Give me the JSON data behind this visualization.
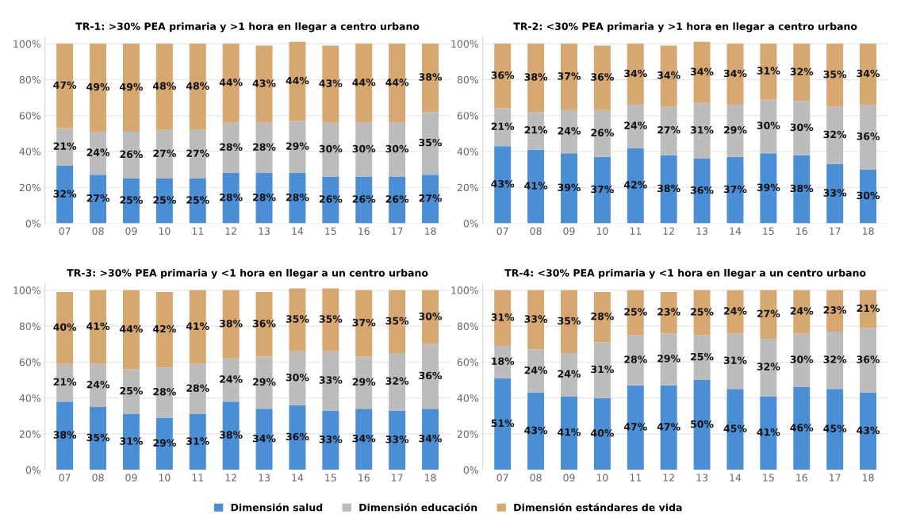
{
  "chart_data": [
    {
      "type": "bar",
      "stacked": true,
      "grid": "y",
      "legend": "bottom",
      "title": "TR-1: >30% PEA primaria y >1 hora en llegar a centro urbano",
      "categories": [
        "07",
        "08",
        "09",
        "10",
        "11",
        "12",
        "13",
        "14",
        "15",
        "16",
        "17",
        "18"
      ],
      "ylim": [
        0,
        104
      ],
      "yticks": [
        {
          "value": 0,
          "label": "0%"
        },
        {
          "value": 20,
          "label": "20%"
        },
        {
          "value": 40,
          "label": "40%"
        },
        {
          "value": 60,
          "label": "60%"
        },
        {
          "value": 80,
          "label": "80%"
        },
        {
          "value": 100,
          "label": "100%"
        }
      ],
      "series": [
        {
          "name": "Dimensión salud",
          "color": "#4a8fd6",
          "values": [
            32,
            27,
            25,
            25,
            25,
            28,
            28,
            28,
            26,
            26,
            26,
            27
          ],
          "value_labels": [
            "32%",
            "27%",
            "25%",
            "25%",
            "25%",
            "28%",
            "28%",
            "28%",
            "26%",
            "26%",
            "26%",
            "27%"
          ]
        },
        {
          "name": "Dimensión educación",
          "color": "#bcbcbc",
          "values": [
            21,
            24,
            26,
            27,
            27,
            28,
            28,
            29,
            30,
            30,
            30,
            35
          ],
          "value_labels": [
            "21%",
            "24%",
            "26%",
            "27%",
            "27%",
            "28%",
            "28%",
            "29%",
            "30%",
            "30%",
            "30%",
            "35%"
          ]
        },
        {
          "name": "Dimensión estándares de vida",
          "color": "#d6a86f",
          "values": [
            47,
            49,
            49,
            48,
            48,
            44,
            43,
            44,
            43,
            44,
            44,
            38
          ],
          "value_labels": [
            "47%",
            "49%",
            "49%",
            "48%",
            "48%",
            "44%",
            "43%",
            "44%",
            "43%",
            "44%",
            "44%",
            "38%"
          ]
        }
      ]
    },
    {
      "type": "bar",
      "stacked": true,
      "grid": "y",
      "title": "TR-2: <30% PEA primaria y >1 hora en llegar a centro urbano",
      "categories": [
        "07",
        "08",
        "09",
        "10",
        "11",
        "12",
        "13",
        "14",
        "15",
        "16",
        "17",
        "18"
      ],
      "ylim": [
        0,
        104
      ],
      "yticks": [
        {
          "value": 0,
          "label": "0%"
        },
        {
          "value": 20,
          "label": "20%"
        },
        {
          "value": 40,
          "label": "40%"
        },
        {
          "value": 60,
          "label": "60%"
        },
        {
          "value": 80,
          "label": "80%"
        },
        {
          "value": 100,
          "label": "100%"
        }
      ],
      "series": [
        {
          "color": "#4a8fd6",
          "values": [
            43,
            41,
            39,
            37,
            42,
            38,
            36,
            37,
            39,
            38,
            33,
            30
          ],
          "value_labels": [
            "43%",
            "41%",
            "39%",
            "37%",
            "42%",
            "38%",
            "36%",
            "37%",
            "39%",
            "38%",
            "33%",
            "30%"
          ]
        },
        {
          "color": "#bcbcbc",
          "values": [
            21,
            21,
            24,
            26,
            24,
            27,
            31,
            29,
            30,
            30,
            32,
            36
          ],
          "value_labels": [
            "21%",
            "21%",
            "24%",
            "26%",
            "24%",
            "27%",
            "31%",
            "29%",
            "30%",
            "30%",
            "32%",
            "36%"
          ]
        },
        {
          "color": "#d6a86f",
          "values": [
            36,
            38,
            37,
            36,
            34,
            34,
            34,
            34,
            31,
            32,
            35,
            34
          ],
          "value_labels": [
            "36%",
            "38%",
            "37%",
            "36%",
            "34%",
            "34%",
            "34%",
            "34%",
            "31%",
            "32%",
            "35%",
            "34%"
          ]
        }
      ]
    },
    {
      "type": "bar",
      "stacked": true,
      "grid": "y",
      "title": "TR-3: >30% PEA primaria y <1 hora en llegar a un centro urbano",
      "categories": [
        "07",
        "08",
        "09",
        "10",
        "11",
        "12",
        "13",
        "14",
        "15",
        "16",
        "17",
        "18"
      ],
      "ylim": [
        0,
        104
      ],
      "yticks": [
        {
          "value": 0,
          "label": "0%"
        },
        {
          "value": 20,
          "label": "20%"
        },
        {
          "value": 40,
          "label": "40%"
        },
        {
          "value": 60,
          "label": "60%"
        },
        {
          "value": 80,
          "label": "80%"
        },
        {
          "value": 100,
          "label": "100%"
        }
      ],
      "series": [
        {
          "color": "#4a8fd6",
          "values": [
            38,
            35,
            31,
            29,
            31,
            38,
            34,
            36,
            33,
            34,
            33,
            34
          ],
          "value_labels": [
            "38%",
            "35%",
            "31%",
            "29%",
            "31%",
            "38%",
            "34%",
            "36%",
            "33%",
            "34%",
            "33%",
            "34%"
          ]
        },
        {
          "color": "#bcbcbc",
          "values": [
            21,
            24,
            25,
            28,
            28,
            24,
            29,
            30,
            33,
            29,
            32,
            36
          ],
          "value_labels": [
            "21%",
            "24%",
            "25%",
            "28%",
            "28%",
            "24%",
            "29%",
            "30%",
            "33%",
            "29%",
            "32%",
            "36%"
          ]
        },
        {
          "color": "#d6a86f",
          "values": [
            40,
            41,
            44,
            42,
            41,
            38,
            36,
            35,
            35,
            37,
            35,
            30
          ],
          "value_labels": [
            "40%",
            "41%",
            "44%",
            "42%",
            "41%",
            "38%",
            "36%",
            "35%",
            "35%",
            "37%",
            "35%",
            "30%"
          ]
        }
      ]
    },
    {
      "type": "bar",
      "stacked": true,
      "grid": "y",
      "title": "TR-4: <30% PEA primaria y <1 hora en llegar a un centro urbano",
      "categories": [
        "07",
        "08",
        "09",
        "10",
        "11",
        "12",
        "13",
        "14",
        "15",
        "16",
        "17",
        "18"
      ],
      "ylim": [
        0,
        104
      ],
      "yticks": [
        {
          "value": 0,
          "label": "0%"
        },
        {
          "value": 20,
          "label": "20%"
        },
        {
          "value": 40,
          "label": "40%"
        },
        {
          "value": 60,
          "label": "60%"
        },
        {
          "value": 80,
          "label": "80%"
        },
        {
          "value": 100,
          "label": "100%"
        }
      ],
      "series": [
        {
          "color": "#4a8fd6",
          "values": [
            51,
            43,
            41,
            40,
            47,
            47,
            50,
            45,
            41,
            46,
            45,
            43
          ],
          "value_labels": [
            "51%",
            "43%",
            "41%",
            "40%",
            "47%",
            "47%",
            "50%",
            "45%",
            "41%",
            "46%",
            "45%",
            "43%"
          ]
        },
        {
          "color": "#bcbcbc",
          "values": [
            18,
            24,
            24,
            31,
            28,
            29,
            25,
            31,
            32,
            30,
            32,
            36
          ],
          "value_labels": [
            "18%",
            "24%",
            "24%",
            "31%",
            "28%",
            "29%",
            "25%",
            "31%",
            "32%",
            "30%",
            "32%",
            "36%"
          ]
        },
        {
          "color": "#d6a86f",
          "values": [
            31,
            33,
            35,
            28,
            25,
            23,
            25,
            24,
            27,
            24,
            23,
            21
          ],
          "value_labels": [
            "31%",
            "33%",
            "35%",
            "28%",
            "25%",
            "23%",
            "25%",
            "24%",
            "27%",
            "24%",
            "23%",
            "21%"
          ]
        }
      ]
    }
  ]
}
